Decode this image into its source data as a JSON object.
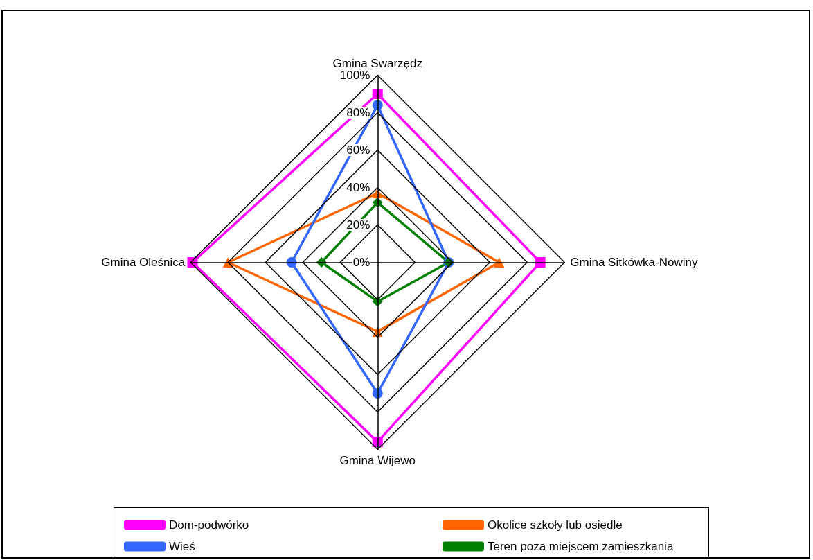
{
  "chart_data": {
    "type": "radar",
    "categories": [
      "Gmina Swarzędz",
      "Gmina Sitkówka-Nowiny",
      "Gmina Wijewo",
      "Gmina Oleśnica"
    ],
    "ylim": [
      0,
      100
    ],
    "yticks": [
      {
        "value": 0,
        "label": "0%"
      },
      {
        "value": 20,
        "label": "20%"
      },
      {
        "value": 40,
        "label": "40%"
      },
      {
        "value": 60,
        "label": "60%"
      },
      {
        "value": 80,
        "label": "80%"
      },
      {
        "value": 100,
        "label": "100%"
      }
    ],
    "legend": "bottom",
    "line_style": "solid",
    "series": [
      {
        "name": "Dom-podwórko",
        "color": "#ff00ff",
        "marker": "square",
        "values": [
          90,
          87,
          96,
          99
        ]
      },
      {
        "name": "Okolice szkoły lub osiedle",
        "color": "#ff6600",
        "marker": "triangle",
        "values": [
          37,
          65,
          37,
          80
        ]
      },
      {
        "name": "Wieś",
        "color": "#3366ff",
        "marker": "circle",
        "values": [
          84,
          38,
          70,
          46
        ]
      },
      {
        "name": "Teren poza miejscem zamieszkania",
        "color": "#008000",
        "marker": "diamond",
        "values": [
          32,
          38,
          21,
          30
        ]
      }
    ]
  }
}
